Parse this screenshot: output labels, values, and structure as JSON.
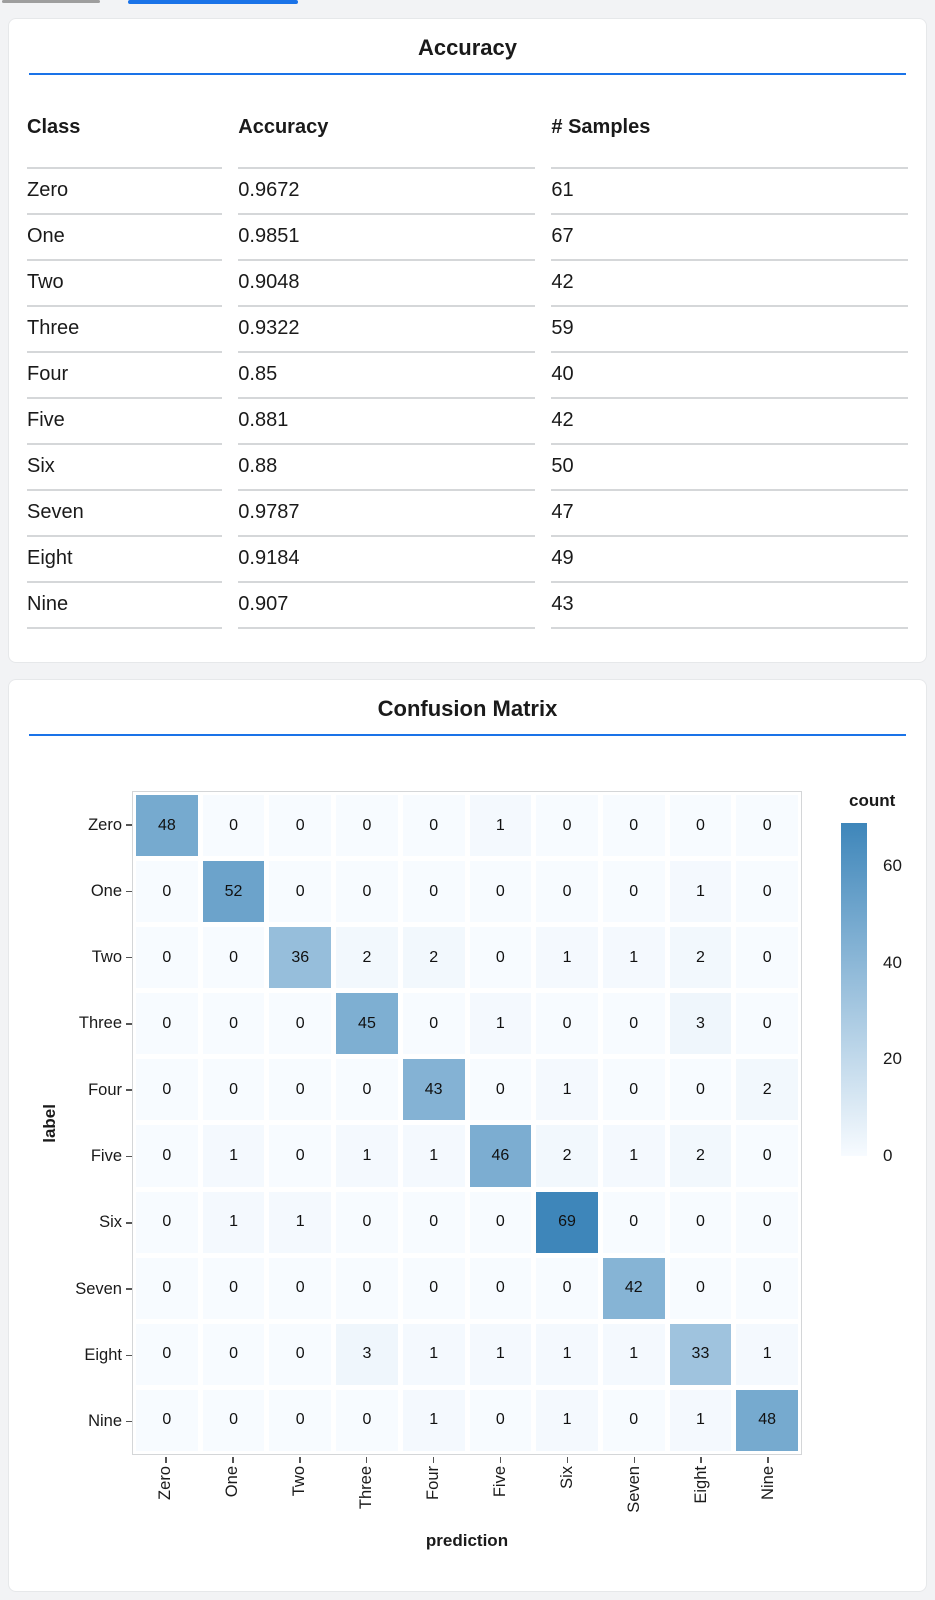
{
  "accent_color": "#1a73e8",
  "tab_indicators": {
    "inactive_color": "#9e9e9e",
    "active_color": "#1a73e8"
  },
  "accuracy_card": {
    "title": "Accuracy"
  },
  "confusion_card": {
    "title": "Confusion Matrix"
  },
  "chart_data": [
    {
      "type": "table",
      "title": "Accuracy",
      "columns": [
        "Class",
        "Accuracy",
        "# Samples"
      ],
      "rows": [
        [
          "Zero",
          "0.9672",
          "61"
        ],
        [
          "One",
          "0.9851",
          "67"
        ],
        [
          "Two",
          "0.9048",
          "42"
        ],
        [
          "Three",
          "0.9322",
          "59"
        ],
        [
          "Four",
          "0.85",
          "40"
        ],
        [
          "Five",
          "0.881",
          "42"
        ],
        [
          "Six",
          "0.88",
          "50"
        ],
        [
          "Seven",
          "0.9787",
          "47"
        ],
        [
          "Eight",
          "0.9184",
          "49"
        ],
        [
          "Nine",
          "0.907",
          "43"
        ]
      ]
    },
    {
      "type": "heatmap",
      "title": "Confusion Matrix",
      "xlabel": "prediction",
      "ylabel": "label",
      "x_categories": [
        "Zero",
        "One",
        "Two",
        "Three",
        "Four",
        "Five",
        "Six",
        "Seven",
        "Eight",
        "Nine"
      ],
      "y_categories": [
        "Zero",
        "One",
        "Two",
        "Three",
        "Four",
        "Five",
        "Six",
        "Seven",
        "Eight",
        "Nine"
      ],
      "matrix": [
        [
          48,
          0,
          0,
          0,
          0,
          1,
          0,
          0,
          0,
          0
        ],
        [
          0,
          52,
          0,
          0,
          0,
          0,
          0,
          0,
          1,
          0
        ],
        [
          0,
          0,
          36,
          2,
          2,
          0,
          1,
          1,
          2,
          0
        ],
        [
          0,
          0,
          0,
          45,
          0,
          1,
          0,
          0,
          3,
          0
        ],
        [
          0,
          0,
          0,
          0,
          43,
          0,
          1,
          0,
          0,
          2
        ],
        [
          0,
          1,
          0,
          1,
          1,
          46,
          2,
          1,
          2,
          0
        ],
        [
          0,
          1,
          1,
          0,
          0,
          0,
          69,
          0,
          0,
          0
        ],
        [
          0,
          0,
          0,
          0,
          0,
          0,
          0,
          42,
          0,
          0
        ],
        [
          0,
          0,
          0,
          3,
          1,
          1,
          1,
          1,
          33,
          1
        ],
        [
          0,
          0,
          0,
          0,
          1,
          0,
          1,
          0,
          1,
          48
        ]
      ],
      "legend": {
        "title": "count",
        "ticks": [
          60,
          40,
          20,
          0
        ],
        "domain": [
          0,
          69
        ]
      },
      "colors": {
        "low": "#f7fbff",
        "high": "#3e86ba"
      }
    }
  ]
}
